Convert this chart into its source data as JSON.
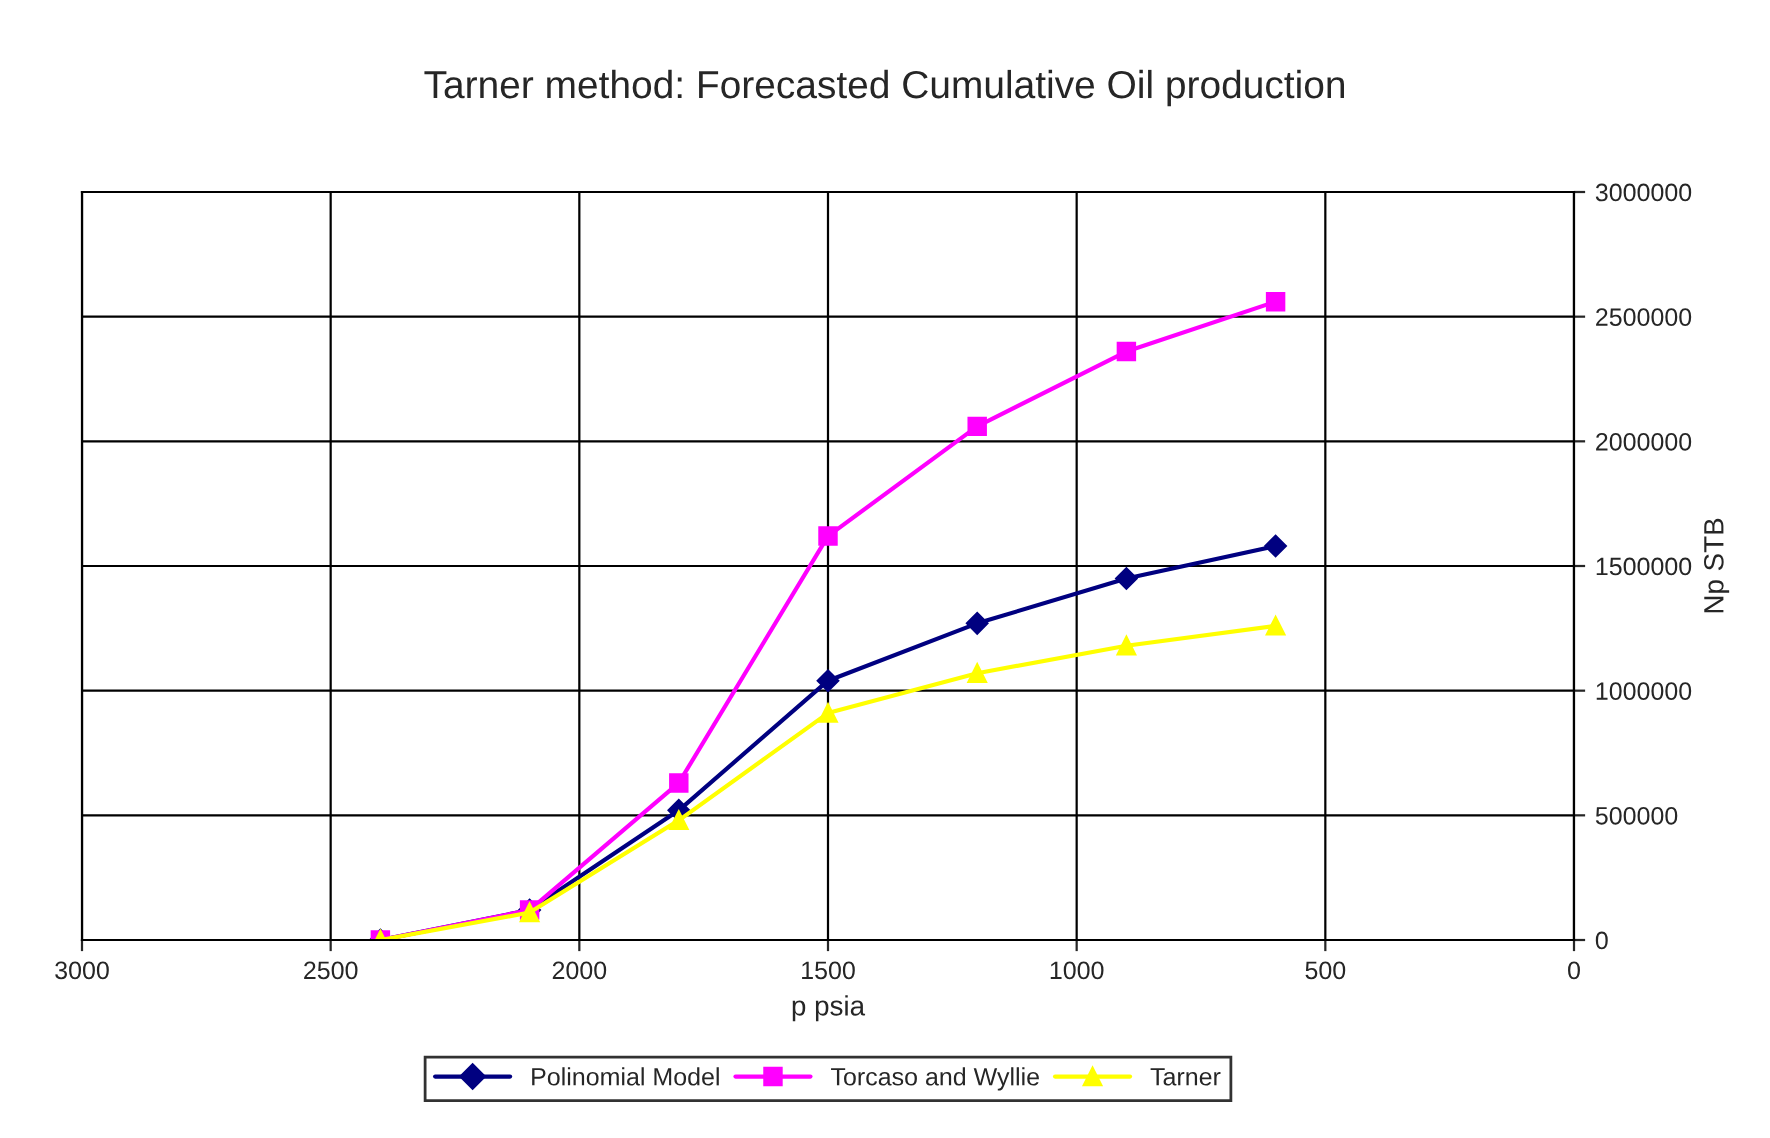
{
  "chart_data": {
    "type": "line",
    "title": "Tarner method: Forecasted Cumulative Oil production",
    "xlabel": "p psia",
    "ylabel": "Np STB",
    "x": [
      2400,
      2100,
      1800,
      1500,
      1200,
      900,
      600
    ],
    "series": [
      {
        "name": "Polinomial Model",
        "color": "#000080",
        "marker": "diamond",
        "values": [
          0,
          120000,
          520000,
          1040000,
          1270000,
          1450000,
          1580000
        ]
      },
      {
        "name": "Torcaso and Wyllie",
        "color": "#ff00ff",
        "marker": "square",
        "values": [
          0,
          120000,
          630000,
          1620000,
          2060000,
          2360000,
          2560000
        ]
      },
      {
        "name": "Tarner",
        "color": "#ffff00",
        "marker": "triangle",
        "values": [
          0,
          110000,
          480000,
          910000,
          1070000,
          1180000,
          1260000
        ]
      }
    ],
    "xlim": [
      3000,
      0
    ],
    "xticks": [
      3000,
      2500,
      2000,
      1500,
      1000,
      500,
      0
    ],
    "ylim": [
      0,
      3000000
    ],
    "yticks": [
      0,
      500000,
      1000000,
      1500000,
      2000000,
      2500000,
      3000000
    ],
    "grid": true,
    "legend": "bottom",
    "line_style": "solid"
  }
}
